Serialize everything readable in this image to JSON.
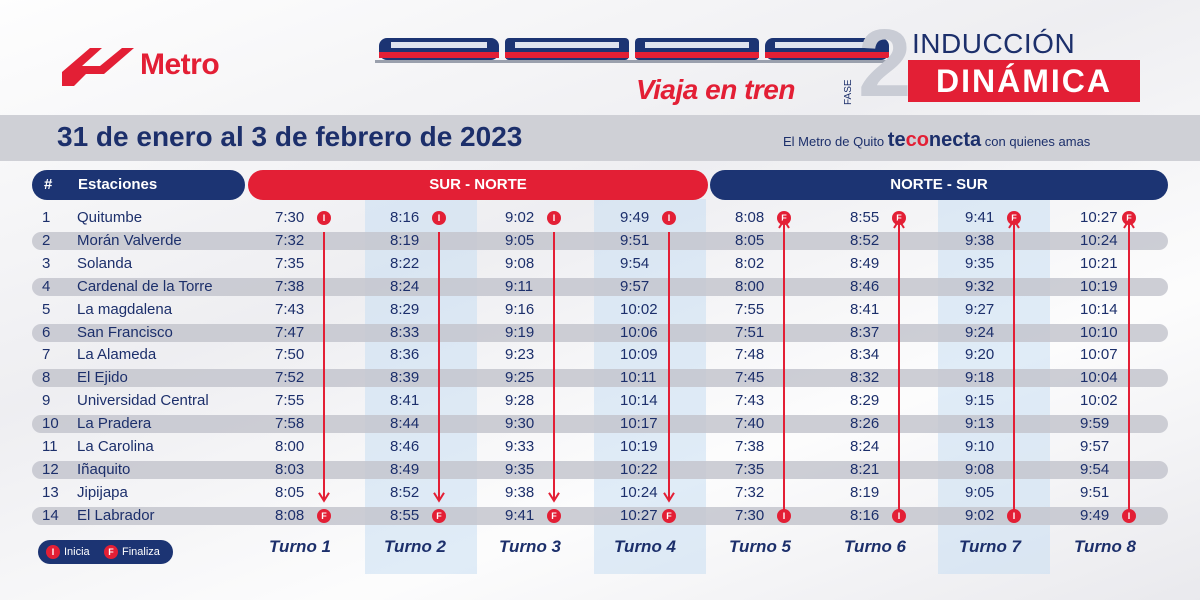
{
  "header": {
    "logo_text": "Metro",
    "slogan": "Viaja en tren",
    "fase_label": "FASE",
    "fase_number": "2",
    "title_line1": "INDUCCIÓN",
    "title_line2": "DINÁMICA",
    "colors": {
      "red": "#e31f35",
      "navy": "#1c3473"
    }
  },
  "date_band": {
    "date_text": "31 de enero al 3 de febrero de 2023",
    "tagline_prefix": "El Metro de Quito",
    "tagline_te": "te",
    "tagline_co": "co",
    "tagline_necta": "necta",
    "tagline_suffix": "con quienes amas"
  },
  "table": {
    "col_number": "#",
    "col_stations": "Estaciones",
    "dir_sur_norte": "SUR - NORTE",
    "dir_norte_sur": "NORTE - SUR",
    "stations": [
      {
        "n": "1",
        "name": "Quitumbe"
      },
      {
        "n": "2",
        "name": "Morán Valverde"
      },
      {
        "n": "3",
        "name": "Solanda"
      },
      {
        "n": "4",
        "name": "Cardenal de la Torre"
      },
      {
        "n": "5",
        "name": "La magdalena"
      },
      {
        "n": "6",
        "name": "San Francisco"
      },
      {
        "n": "7",
        "name": "La Alameda"
      },
      {
        "n": "8",
        "name": "El Ejido"
      },
      {
        "n": "9",
        "name": "Universidad Central"
      },
      {
        "n": "10",
        "name": "La Pradera"
      },
      {
        "n": "11",
        "name": "La Carolina"
      },
      {
        "n": "12",
        "name": "Iñaquito"
      },
      {
        "n": "13",
        "name": "Jipijapa"
      },
      {
        "n": "14",
        "name": "El Labrador"
      }
    ],
    "turnos": [
      {
        "label": "Turno 1",
        "dir": "sn",
        "times": [
          "7:30",
          "7:32",
          "7:35",
          "7:38",
          "7:43",
          "7:47",
          "7:50",
          "7:52",
          "7:55",
          "7:58",
          "8:00",
          "8:03",
          "8:05",
          "8:08"
        ]
      },
      {
        "label": "Turno 2",
        "dir": "sn",
        "times": [
          "8:16",
          "8:19",
          "8:22",
          "8:24",
          "8:29",
          "8:33",
          "8:36",
          "8:39",
          "8:41",
          "8:44",
          "8:46",
          "8:49",
          "8:52",
          "8:55"
        ]
      },
      {
        "label": "Turno 3",
        "dir": "sn",
        "times": [
          "9:02",
          "9:05",
          "9:08",
          "9:11",
          "9:16",
          "9:19",
          "9:23",
          "9:25",
          "9:28",
          "9:30",
          "9:33",
          "9:35",
          "9:38",
          "9:41"
        ]
      },
      {
        "label": "Turno 4",
        "dir": "sn",
        "times": [
          "9:49",
          "9:51",
          "9:54",
          "9:57",
          "10:02",
          "10:06",
          "10:09",
          "10:11",
          "10:14",
          "10:17",
          "10:19",
          "10:22",
          "10:24",
          "10:27"
        ]
      },
      {
        "label": "Turno 5",
        "dir": "ns",
        "times": [
          "8:08",
          "8:05",
          "8:02",
          "8:00",
          "7:55",
          "7:51",
          "7:48",
          "7:45",
          "7:43",
          "7:40",
          "7:38",
          "7:35",
          "7:32",
          "7:30"
        ]
      },
      {
        "label": "Turno 6",
        "dir": "ns",
        "times": [
          "8:55",
          "8:52",
          "8:49",
          "8:46",
          "8:41",
          "8:37",
          "8:34",
          "8:32",
          "8:29",
          "8:26",
          "8:24",
          "8:21",
          "8:19",
          "8:16"
        ]
      },
      {
        "label": "Turno 7",
        "dir": "ns",
        "times": [
          "9:41",
          "9:38",
          "9:35",
          "9:32",
          "9:27",
          "9:24",
          "9:20",
          "9:18",
          "9:15",
          "9:13",
          "9:10",
          "9:08",
          "9:05",
          "9:02"
        ]
      },
      {
        "label": "Turno 8",
        "dir": "ns",
        "times": [
          "10:27",
          "10:24",
          "10:21",
          "10:19",
          "10:14",
          "10:10",
          "10:07",
          "10:04",
          "10:02",
          "9:59",
          "9:57",
          "9:54",
          "9:51",
          "9:49"
        ]
      }
    ]
  },
  "legend": {
    "inicia_badge": "I",
    "inicia_label": "Inicia",
    "finaliza_badge": "F",
    "finaliza_label": "Finaliza"
  }
}
